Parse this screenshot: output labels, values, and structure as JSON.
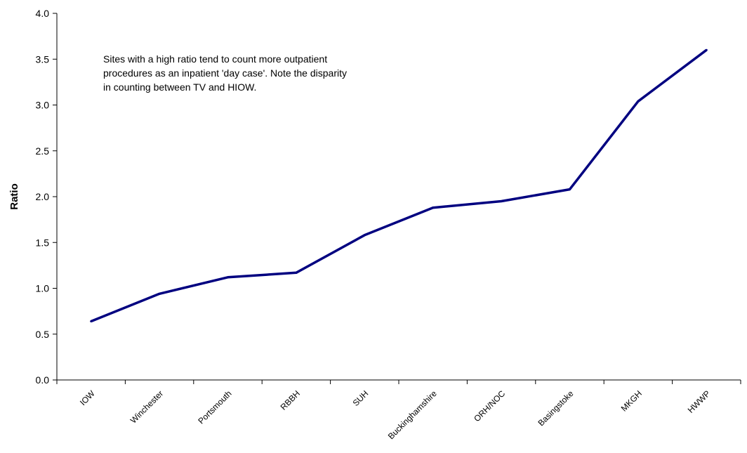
{
  "chart_data": {
    "type": "line",
    "categories": [
      "IOW",
      "Winchester",
      "Portsmouth",
      "RBBH",
      "SUH",
      "Buckinghamshire",
      "ORH/NOC",
      "Basingstoke",
      "MKGH",
      "HWWP"
    ],
    "series": [
      {
        "values": [
          0.64,
          0.94,
          1.12,
          1.17,
          1.58,
          1.88,
          1.95,
          2.08,
          3.04,
          3.6
        ],
        "color": "#000080"
      }
    ],
    "title": "",
    "xlabel": "",
    "ylabel": "Ratio",
    "ylim": [
      0,
      4
    ],
    "yticks": [
      "0.0",
      "0.5",
      "1.0",
      "1.5",
      "2.0",
      "2.5",
      "3.0",
      "3.5",
      "4.0"
    ],
    "grid": false,
    "legend": "none",
    "annotation": "Sites with a high ratio tend to count more outpatient procedures as an inpatient 'day case'. Note the disparity in counting between TV and HIOW."
  }
}
